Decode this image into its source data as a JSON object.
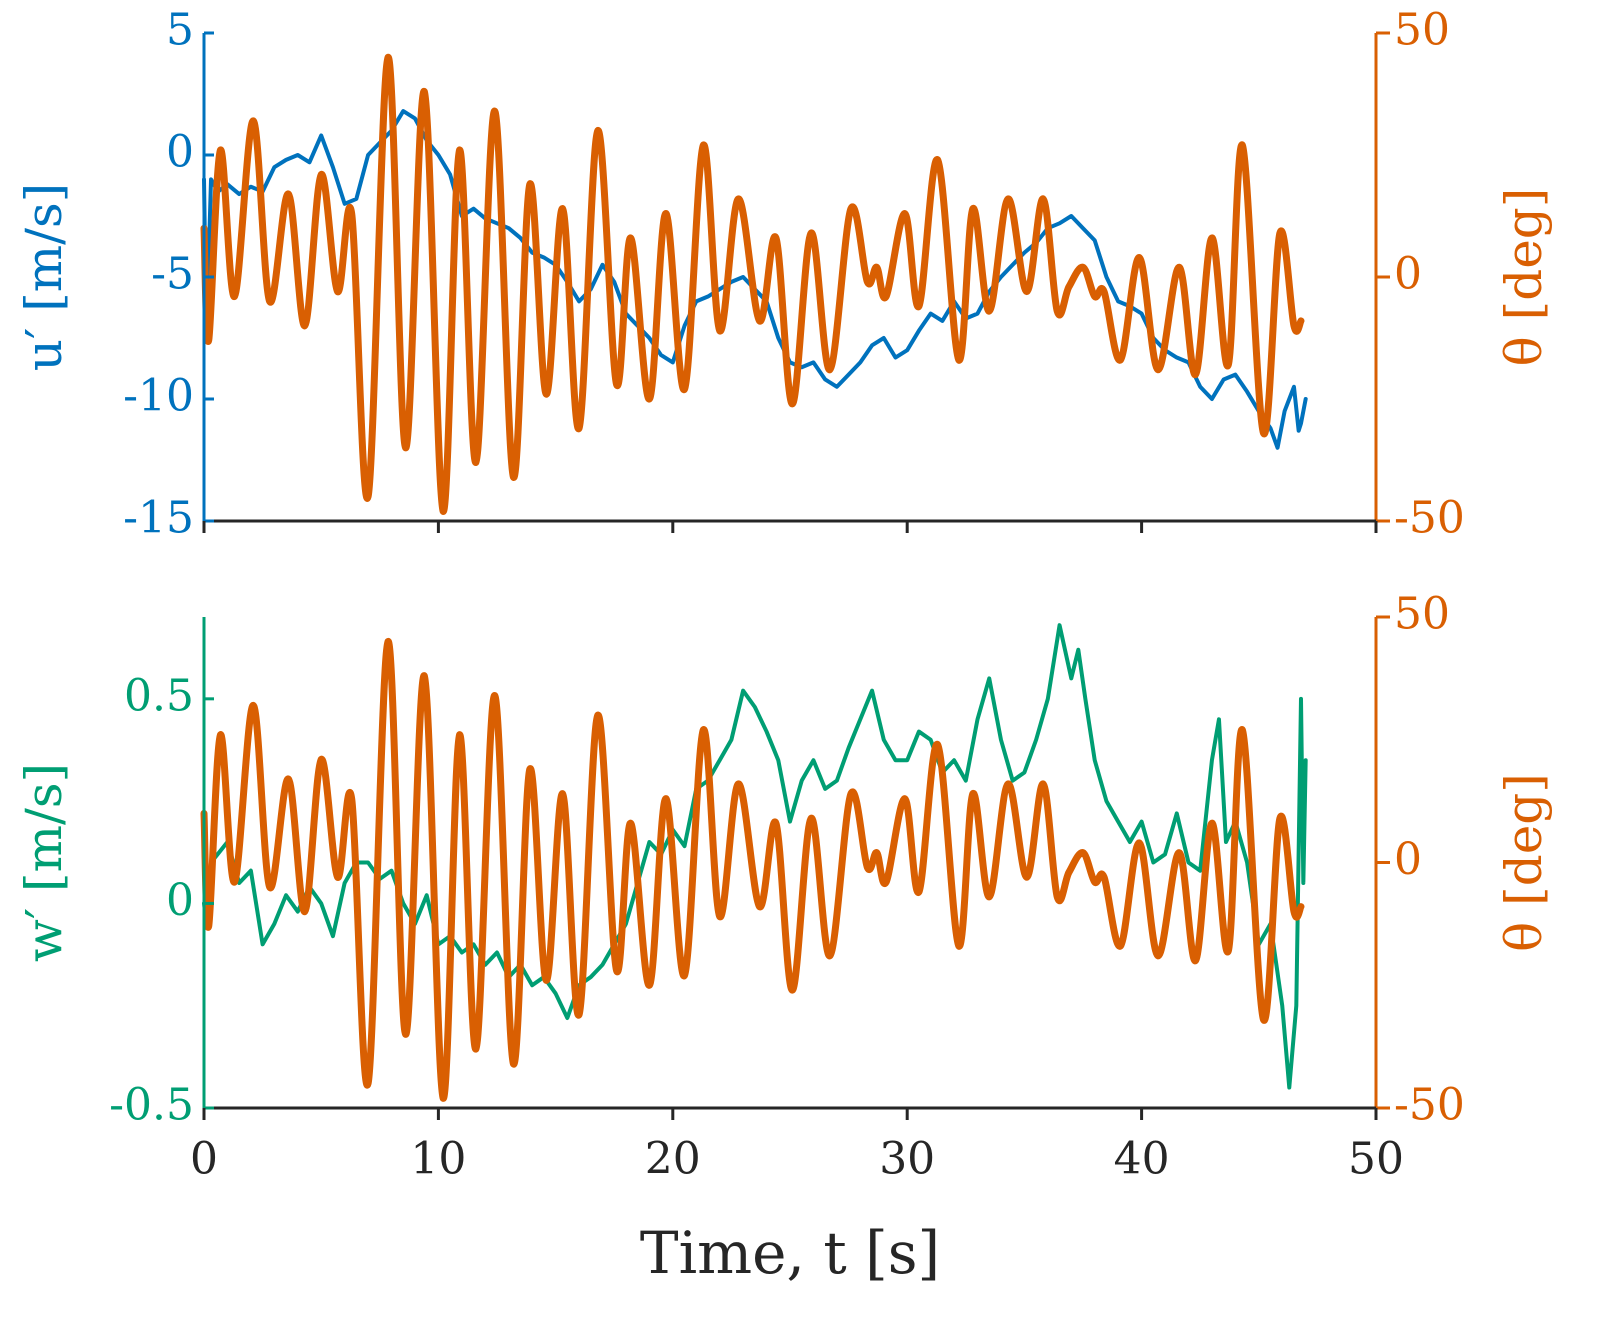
{
  "chart_data": [
    {
      "type": "line",
      "xlim": [
        0,
        50
      ],
      "xticks": [
        0,
        10,
        20,
        30,
        40,
        50
      ],
      "xticklabels": false,
      "ylim": [
        -15,
        5
      ],
      "yticks": [
        -15,
        -10,
        -5,
        0,
        5
      ],
      "ylabel": "u′ [m/s]",
      "y_color": "#0072bd",
      "y2lim": [
        -50,
        50
      ],
      "y2ticks": [
        -50,
        0,
        50
      ],
      "y2label": "θ [deg]",
      "y2_color": "#d95f02",
      "series": [
        {
          "color": "#0072bd",
          "axis": "y",
          "smooth": false,
          "x": [
            0,
            0.1,
            0.3,
            0.6,
            1,
            1.5,
            2,
            2.5,
            3,
            3.5,
            4,
            4.5,
            5,
            5.5,
            6,
            6.5,
            7,
            7.5,
            8,
            8.5,
            9,
            9.5,
            10,
            10.5,
            11,
            11.5,
            12,
            12.5,
            13,
            13.5,
            14,
            14.5,
            15,
            15.5,
            16,
            16.5,
            17,
            17.5,
            18,
            18.5,
            19,
            19.5,
            20,
            20.5,
            21,
            21.5,
            22,
            22.5,
            23,
            23.5,
            24,
            24.5,
            25,
            25.5,
            26,
            26.5,
            27,
            27.5,
            28,
            28.5,
            29,
            29.5,
            30,
            30.5,
            31,
            31.5,
            32,
            32.5,
            33,
            33.5,
            34,
            34.5,
            35,
            35.5,
            36,
            36.5,
            37,
            37.5,
            38,
            38.5,
            39,
            39.5,
            40,
            40.5,
            41,
            41.5,
            42,
            42.5,
            43,
            43.5,
            44,
            44.5,
            45,
            45.5,
            45.8,
            46.1,
            46.3,
            46.5,
            46.7,
            46.8,
            47
          ],
          "values": [
            -1,
            -7.5,
            -1,
            -1.5,
            -1.2,
            -1.6,
            -1.3,
            -1.5,
            -0.5,
            -0.2,
            0,
            -0.3,
            0.8,
            -0.5,
            -2,
            -1.8,
            0,
            0.5,
            1,
            1.8,
            1.5,
            0.6,
            0,
            -0.8,
            -2.5,
            -2.2,
            -2.6,
            -2.8,
            -3,
            -3.4,
            -4,
            -4.2,
            -4.5,
            -5.2,
            -6,
            -5.5,
            -4.5,
            -5.2,
            -6.5,
            -7,
            -7.5,
            -8.2,
            -8.5,
            -7,
            -6,
            -5.8,
            -5.5,
            -5.2,
            -5,
            -5.5,
            -6,
            -7.5,
            -8.5,
            -8.7,
            -8.5,
            -9.2,
            -9.5,
            -9,
            -8.5,
            -7.8,
            -7.5,
            -8.3,
            -8,
            -7.2,
            -6.5,
            -6.8,
            -6,
            -6.7,
            -6.5,
            -5.6,
            -5,
            -4.5,
            -4,
            -3.6,
            -3,
            -2.8,
            -2.5,
            -3,
            -3.5,
            -5,
            -6,
            -6.2,
            -6.5,
            -7.5,
            -8,
            -8.3,
            -8.5,
            -9.5,
            -10,
            -9.2,
            -9,
            -9.7,
            -10.5,
            -11.2,
            -12,
            -10.5,
            -10,
            -9.5,
            -11.3,
            -11,
            -10
          ]
        },
        {
          "color": "#d95f02",
          "axis": "y2",
          "smooth": true,
          "x": [
            0,
            0.2,
            0.7,
            1.3,
            2.1,
            2.8,
            3.6,
            4.3,
            5.0,
            5.7,
            6.3,
            7.0,
            7.85,
            8.6,
            9.4,
            10.2,
            10.9,
            11.6,
            12.4,
            13.2,
            13.9,
            14.6,
            15.3,
            16.0,
            16.8,
            17.6,
            18.2,
            19.0,
            19.7,
            20.5,
            21.3,
            22.0,
            22.8,
            23.7,
            24.4,
            25.1,
            25.9,
            26.7,
            27.6,
            28.3,
            28.7,
            29.1,
            29.9,
            30.5,
            31.3,
            32.2,
            32.8,
            33.5,
            34.3,
            35.1,
            35.8,
            36.4,
            36.9,
            37.5,
            38.0,
            38.4,
            39.1,
            39.9,
            40.7,
            41.6,
            42.3,
            43.0,
            43.7,
            44.3,
            45.2,
            45.9,
            46.5,
            46.8
          ],
          "values": [
            10,
            -13,
            26,
            -4,
            32,
            -5,
            17,
            -10,
            21,
            -3,
            13,
            -45,
            45,
            -35,
            38,
            -48,
            26,
            -38,
            34,
            -41,
            19,
            -24,
            14,
            -31,
            30,
            -22,
            8,
            -25,
            13,
            -23,
            27,
            -11,
            16,
            -9,
            8,
            -26,
            9,
            -19,
            14,
            -1,
            2,
            -4,
            13,
            -6,
            24,
            -17,
            14,
            -7,
            16,
            -3,
            16,
            -7,
            -2,
            2,
            -4,
            -3,
            -17,
            4,
            -19,
            2,
            -20,
            8,
            -18,
            27,
            -32,
            9,
            -10,
            -9
          ]
        }
      ]
    },
    {
      "type": "line",
      "xlim": [
        0,
        50
      ],
      "xticks": [
        0,
        10,
        20,
        30,
        40,
        50
      ],
      "xlabel": "Time, t [s]",
      "ylim": [
        -0.5,
        0.7
      ],
      "yticks": [
        -0.5,
        0,
        0.5
      ],
      "ylabel": "w′ [m/s]",
      "y_color": "#009e73",
      "y2lim": [
        -50,
        50
      ],
      "y2ticks": [
        -50,
        0,
        50
      ],
      "y2label": "θ [deg]",
      "y2_color": "#d95f02",
      "series": [
        {
          "color": "#009e73",
          "axis": "y",
          "smooth": false,
          "x": [
            0,
            0.1,
            0.3,
            1,
            1.5,
            2,
            2.5,
            3,
            3.5,
            4,
            4.5,
            5,
            5.5,
            6,
            6.5,
            7,
            7.5,
            8,
            8.5,
            9,
            9.5,
            10,
            10.5,
            11,
            11.5,
            12,
            12.5,
            13,
            13.5,
            14,
            14.5,
            15,
            15.5,
            16,
            16.5,
            17,
            17.5,
            18,
            18.5,
            19,
            19.5,
            20,
            20.5,
            21,
            21.5,
            22,
            22.5,
            23,
            23.5,
            24,
            24.5,
            25,
            25.5,
            26,
            26.5,
            27,
            27.5,
            28,
            28.5,
            29,
            29.5,
            30,
            30.5,
            31,
            31.5,
            32,
            32.5,
            33,
            33.5,
            34,
            34.5,
            35,
            35.5,
            36,
            36.5,
            37,
            37.3,
            37.6,
            38,
            38.5,
            39,
            39.5,
            40,
            40.5,
            41,
            41.5,
            42,
            42.5,
            43,
            43.3,
            43.6,
            44,
            44.5,
            45,
            45.5,
            46,
            46.3,
            46.6,
            46.8,
            46.9,
            47
          ],
          "values": [
            0,
            -0.05,
            0.1,
            0.15,
            0.05,
            0.08,
            -0.1,
            -0.05,
            0.02,
            -0.02,
            0.04,
            0,
            -0.08,
            0.05,
            0.1,
            0.1,
            0.06,
            0.08,
            0,
            -0.05,
            0.02,
            -0.1,
            -0.08,
            -0.12,
            -0.1,
            -0.15,
            -0.12,
            -0.18,
            -0.15,
            -0.2,
            -0.18,
            -0.22,
            -0.28,
            -0.2,
            -0.18,
            -0.15,
            -0.1,
            -0.05,
            0.05,
            0.15,
            0.12,
            0.18,
            0.14,
            0.28,
            0.3,
            0.35,
            0.4,
            0.52,
            0.48,
            0.42,
            0.35,
            0.2,
            0.3,
            0.35,
            0.28,
            0.3,
            0.38,
            0.45,
            0.52,
            0.4,
            0.35,
            0.35,
            0.42,
            0.4,
            0.32,
            0.35,
            0.3,
            0.45,
            0.55,
            0.4,
            0.3,
            0.32,
            0.4,
            0.5,
            0.68,
            0.55,
            0.62,
            0.5,
            0.35,
            0.25,
            0.2,
            0.15,
            0.2,
            0.1,
            0.12,
            0.22,
            0.1,
            0.08,
            0.35,
            0.45,
            0.15,
            0.2,
            0.1,
            -0.1,
            -0.05,
            -0.25,
            -0.45,
            -0.25,
            0.5,
            0.05,
            0.35
          ]
        },
        {
          "color": "#d95f02",
          "axis": "y2",
          "smooth": true,
          "x": [
            0,
            0.2,
            0.7,
            1.3,
            2.1,
            2.8,
            3.6,
            4.3,
            5.0,
            5.7,
            6.3,
            7.0,
            7.85,
            8.6,
            9.4,
            10.2,
            10.9,
            11.6,
            12.4,
            13.2,
            13.9,
            14.6,
            15.3,
            16.0,
            16.8,
            17.6,
            18.2,
            19.0,
            19.7,
            20.5,
            21.3,
            22.0,
            22.8,
            23.7,
            24.4,
            25.1,
            25.9,
            26.7,
            27.6,
            28.3,
            28.7,
            29.1,
            29.9,
            30.5,
            31.3,
            32.2,
            32.8,
            33.5,
            34.3,
            35.1,
            35.8,
            36.4,
            36.9,
            37.5,
            38.0,
            38.4,
            39.1,
            39.9,
            40.7,
            41.6,
            42.3,
            43.0,
            43.7,
            44.3,
            45.2,
            45.9,
            46.5,
            46.8
          ],
          "values": [
            10,
            -13,
            26,
            -4,
            32,
            -5,
            17,
            -10,
            21,
            -3,
            13,
            -45,
            45,
            -35,
            38,
            -48,
            26,
            -38,
            34,
            -41,
            19,
            -24,
            14,
            -31,
            30,
            -22,
            8,
            -25,
            13,
            -23,
            27,
            -11,
            16,
            -9,
            8,
            -26,
            9,
            -19,
            14,
            -1,
            2,
            -4,
            13,
            -6,
            24,
            -17,
            14,
            -7,
            16,
            -3,
            16,
            -7,
            -2,
            2,
            -4,
            -3,
            -17,
            4,
            -19,
            2,
            -20,
            8,
            -18,
            27,
            -32,
            9,
            -10,
            -9
          ]
        }
      ]
    }
  ]
}
